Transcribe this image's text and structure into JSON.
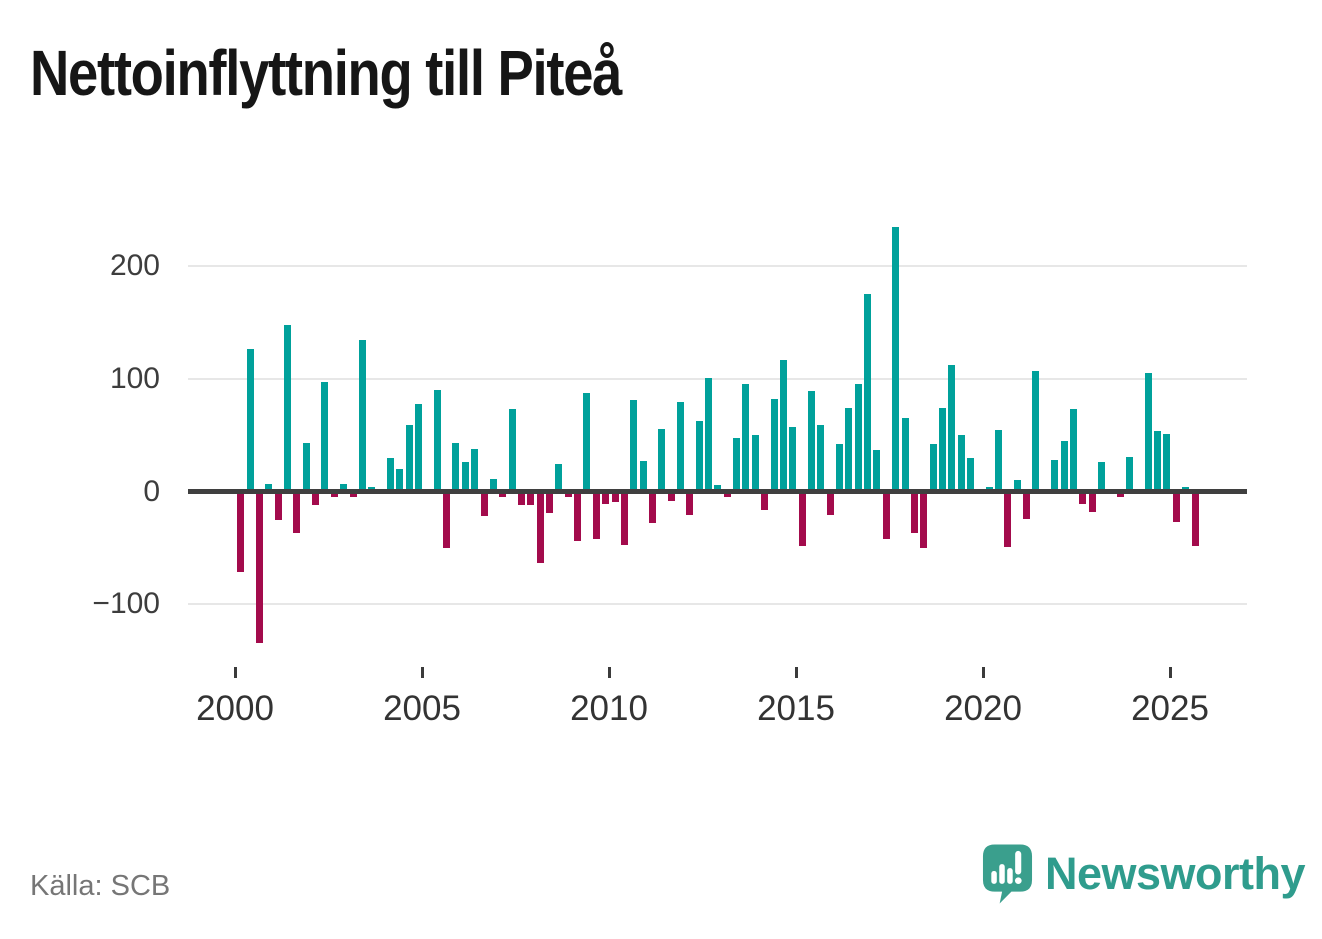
{
  "title": "Nettoinflyttning till Piteå",
  "source": "Källa: SCB",
  "branding": {
    "logo_text": "Newsworthy",
    "logo_icon": "speech-bubble-bar-chart-icon"
  },
  "colors": {
    "positive": "#00a19b",
    "negative": "#a30b4c",
    "logo": "#3a9f8d",
    "logo_text": "#2f9c8d",
    "zero_line": "#3f3f3f",
    "gridline": "#e7e7e7"
  },
  "chart_data": {
    "type": "bar",
    "title": "Nettoinflyttning till Piteå",
    "grid": "horizontal",
    "legend": "none",
    "y_axis": {
      "ticks": [
        200,
        100,
        0,
        -100
      ],
      "tick_labels": [
        "200",
        "100",
        "0",
        "−100"
      ],
      "ylim": [
        -140,
        245
      ]
    },
    "x_axis": {
      "tick_labels": [
        "2000",
        "2005",
        "2010",
        "2015",
        "2020",
        "2025"
      ],
      "range_start": "2000 Q1",
      "range_end": "2025 Q3",
      "frequency": "quarterly"
    },
    "x": [
      "2000 Q1",
      "2000 Q2",
      "2000 Q3",
      "2000 Q4",
      "2001 Q1",
      "2001 Q2",
      "2001 Q3",
      "2001 Q4",
      "2002 Q1",
      "2002 Q2",
      "2002 Q3",
      "2002 Q4",
      "2003 Q1",
      "2003 Q2",
      "2003 Q3",
      "2003 Q4",
      "2004 Q1",
      "2004 Q2",
      "2004 Q3",
      "2004 Q4",
      "2005 Q1",
      "2005 Q2",
      "2005 Q3",
      "2005 Q4",
      "2006 Q1",
      "2006 Q2",
      "2006 Q3",
      "2006 Q4",
      "2007 Q1",
      "2007 Q2",
      "2007 Q3",
      "2007 Q4",
      "2008 Q1",
      "2008 Q2",
      "2008 Q3",
      "2008 Q4",
      "2009 Q1",
      "2009 Q2",
      "2009 Q3",
      "2009 Q4",
      "2010 Q1",
      "2010 Q2",
      "2010 Q3",
      "2010 Q4",
      "2011 Q1",
      "2011 Q2",
      "2011 Q3",
      "2011 Q4",
      "2012 Q1",
      "2012 Q2",
      "2012 Q3",
      "2012 Q4",
      "2013 Q1",
      "2013 Q2",
      "2013 Q3",
      "2013 Q4",
      "2014 Q1",
      "2014 Q2",
      "2014 Q3",
      "2014 Q4",
      "2015 Q1",
      "2015 Q2",
      "2015 Q3",
      "2015 Q4",
      "2016 Q1",
      "2016 Q2",
      "2016 Q3",
      "2016 Q4",
      "2017 Q1",
      "2017 Q2",
      "2017 Q3",
      "2017 Q4",
      "2018 Q1",
      "2018 Q2",
      "2018 Q3",
      "2018 Q4",
      "2019 Q1",
      "2019 Q2",
      "2019 Q3",
      "2019 Q4",
      "2020 Q1",
      "2020 Q2",
      "2020 Q3",
      "2020 Q4",
      "2021 Q1",
      "2021 Q2",
      "2021 Q3",
      "2021 Q4",
      "2022 Q1",
      "2022 Q2",
      "2022 Q3",
      "2022 Q4",
      "2023 Q1",
      "2023 Q2",
      "2023 Q3",
      "2023 Q4",
      "2024 Q1",
      "2024 Q2",
      "2024 Q3",
      "2024 Q4",
      "2025 Q1",
      "2025 Q2",
      "2025 Q3"
    ],
    "values": [
      -71,
      127,
      -134,
      7,
      -25,
      148,
      -37,
      43,
      -12,
      97,
      -5,
      7,
      -5,
      135,
      4,
      0,
      30,
      20,
      59,
      78,
      0,
      90,
      -50,
      43,
      26,
      38,
      -22,
      11,
      -5,
      73,
      -12,
      -12,
      -63,
      -19,
      25,
      -5,
      -44,
      88,
      -42,
      -11,
      -9,
      -47,
      81,
      27,
      -28,
      56,
      -8,
      80,
      -21,
      63,
      101,
      6,
      -5,
      48,
      96,
      50,
      -16,
      82,
      117,
      57,
      -48,
      89,
      59,
      -21,
      42,
      74,
      96,
      175,
      37,
      -42,
      235,
      65,
      -37,
      -50,
      42,
      74,
      112,
      50,
      30,
      0,
      4,
      55,
      -49,
      10,
      -24,
      107,
      0,
      28,
      45,
      73,
      -11,
      -18,
      26,
      0,
      -5,
      31,
      0,
      105,
      54,
      51,
      -27,
      4,
      -48
    ]
  }
}
